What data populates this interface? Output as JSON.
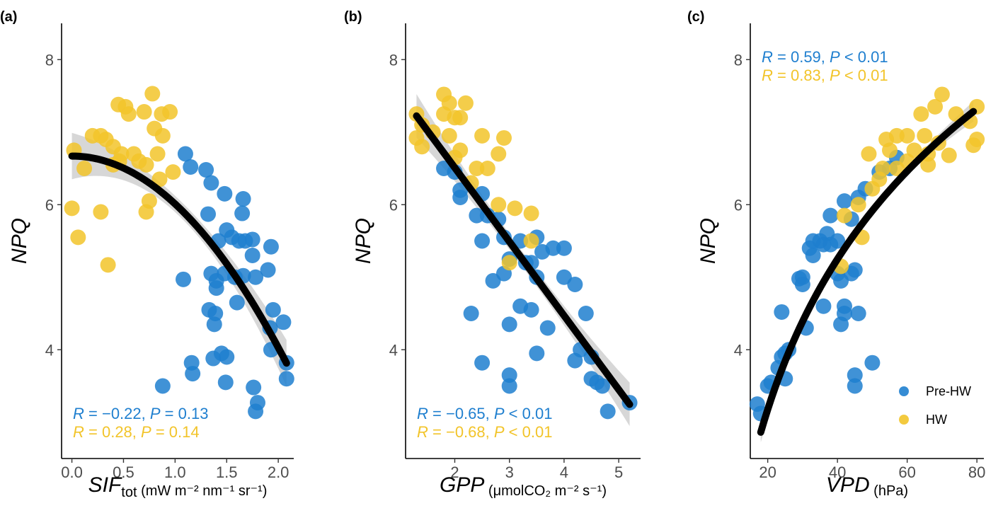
{
  "colors": {
    "pre_hw": "#1f7fcf",
    "hw": "#f2c42a",
    "fit": "#000000",
    "band": "#bdbdbd"
  },
  "legend": {
    "items": [
      {
        "label": "Pre-HW",
        "series": "pre_hw"
      },
      {
        "label": "HW",
        "series": "hw"
      }
    ]
  },
  "chart_data": [
    {
      "type": "scatter",
      "panel_label": "(a)",
      "ylabel": "NPQ",
      "xlabel_main": "SIF",
      "xlabel_sub": "tot",
      "xlabel_unit": "(mW m⁻² nm⁻¹ sr⁻¹)",
      "xlim": [
        -0.1,
        2.15
      ],
      "ylim": [
        2.5,
        8.5
      ],
      "xticks": [
        0.0,
        0.5,
        1.0,
        1.5,
        2.0
      ],
      "xtick_labels": [
        "0.0",
        "0.5",
        "1.0",
        "1.5",
        "2.0"
      ],
      "yticks": [
        4,
        6,
        8
      ],
      "ytick_labels": [
        "4",
        "6",
        "8"
      ],
      "stats": [
        {
          "series": "pre_hw",
          "r": "−0.22",
          "p": "0.13",
          "op": "="
        },
        {
          "series": "hw",
          "r": "0.28",
          "p": "0.14",
          "op": "="
        }
      ],
      "fit": {
        "type": "poly2",
        "coef": [
          6.67,
          0.0,
          -0.66
        ],
        "x": [
          0.0,
          2.08
        ],
        "se": 0.32
      },
      "series": [
        {
          "name": "Pre-HW",
          "key": "pre_hw",
          "points": [
            [
              1.1,
              6.7
            ],
            [
              1.15,
              6.52
            ],
            [
              1.3,
              6.48
            ],
            [
              1.35,
              6.3
            ],
            [
              1.48,
              6.15
            ],
            [
              1.66,
              6.08
            ],
            [
              1.65,
              5.88
            ],
            [
              1.32,
              5.87
            ],
            [
              1.5,
              5.65
            ],
            [
              1.42,
              5.5
            ],
            [
              1.55,
              5.55
            ],
            [
              1.62,
              5.5
            ],
            [
              1.68,
              5.5
            ],
            [
              1.75,
              5.52
            ],
            [
              1.93,
              5.42
            ],
            [
              1.75,
              5.3
            ],
            [
              1.48,
              5.05
            ],
            [
              1.35,
              5.05
            ],
            [
              1.4,
              4.95
            ],
            [
              1.08,
              4.97
            ],
            [
              1.58,
              5.0
            ],
            [
              1.66,
              5.02
            ],
            [
              1.78,
              5.0
            ],
            [
              1.9,
              5.1
            ],
            [
              1.4,
              4.85
            ],
            [
              1.6,
              4.65
            ],
            [
              1.33,
              4.55
            ],
            [
              1.39,
              4.5
            ],
            [
              1.38,
              4.35
            ],
            [
              1.95,
              4.55
            ],
            [
              2.05,
              4.38
            ],
            [
              1.92,
              4.3
            ],
            [
              1.93,
              4.0
            ],
            [
              1.45,
              3.95
            ],
            [
              1.5,
              3.9
            ],
            [
              1.37,
              3.88
            ],
            [
              1.16,
              3.82
            ],
            [
              1.17,
              3.67
            ],
            [
              1.49,
              3.55
            ],
            [
              1.76,
              3.48
            ],
            [
              0.88,
              3.5
            ],
            [
              1.8,
              3.27
            ],
            [
              1.78,
              3.15
            ],
            [
              2.08,
              3.82
            ],
            [
              2.08,
              3.6
            ]
          ]
        },
        {
          "name": "HW",
          "key": "hw",
          "points": [
            [
              0.45,
              7.38
            ],
            [
              0.52,
              7.35
            ],
            [
              0.78,
              7.53
            ],
            [
              0.7,
              7.28
            ],
            [
              0.87,
              7.25
            ],
            [
              0.95,
              7.28
            ],
            [
              0.55,
              7.25
            ],
            [
              0.8,
              7.05
            ],
            [
              0.88,
              6.95
            ],
            [
              0.2,
              6.95
            ],
            [
              0.28,
              6.95
            ],
            [
              0.33,
              6.9
            ],
            [
              0.02,
              6.75
            ],
            [
              0.4,
              6.8
            ],
            [
              0.48,
              6.7
            ],
            [
              0.6,
              6.7
            ],
            [
              0.83,
              6.7
            ],
            [
              0.46,
              6.6
            ],
            [
              0.65,
              6.6
            ],
            [
              0.12,
              6.5
            ],
            [
              0.4,
              6.55
            ],
            [
              0.72,
              6.55
            ],
            [
              0.98,
              6.45
            ],
            [
              0.85,
              6.35
            ],
            [
              0.75,
              6.05
            ],
            [
              0.72,
              5.9
            ],
            [
              0.28,
              5.9
            ],
            [
              0.0,
              5.95
            ],
            [
              0.06,
              5.55
            ],
            [
              0.35,
              5.17
            ]
          ]
        }
      ]
    },
    {
      "type": "scatter",
      "panel_label": "(b)",
      "ylabel": "NPQ",
      "xlabel_main": "GPP",
      "xlabel_sub": "",
      "xlabel_unit": "(μmolCO₂ m⁻² s⁻¹)",
      "xlim": [
        1.1,
        5.4
      ],
      "ylim": [
        2.5,
        8.5
      ],
      "xticks": [
        2,
        3,
        4,
        5
      ],
      "xtick_labels": [
        "2",
        "3",
        "4",
        "5"
      ],
      "yticks": [
        4,
        6,
        8
      ],
      "ytick_labels": [
        "4",
        "6",
        "8"
      ],
      "stats": [
        {
          "series": "pre_hw",
          "r": "−0.65",
          "p": "0.01",
          "op": "<"
        },
        {
          "series": "hw",
          "r": "−0.68",
          "p": "0.01",
          "op": "<"
        }
      ],
      "fit": {
        "type": "poly2",
        "coef": [
          8.55,
          -1.02,
          0.0
        ],
        "x": [
          1.3,
          5.2
        ],
        "se": 0.3
      },
      "series": [
        {
          "name": "Pre-HW",
          "key": "pre_hw",
          "points": [
            [
              1.8,
              6.5
            ],
            [
              2.0,
              6.45
            ],
            [
              2.1,
              6.2
            ],
            [
              2.1,
              6.1
            ],
            [
              2.5,
              6.15
            ],
            [
              2.4,
              5.85
            ],
            [
              2.6,
              5.85
            ],
            [
              2.9,
              5.55
            ],
            [
              3.2,
              5.5
            ],
            [
              3.5,
              5.55
            ],
            [
              3.6,
              5.35
            ],
            [
              3.8,
              5.4
            ],
            [
              2.8,
              5.8
            ],
            [
              3.0,
              5.25
            ],
            [
              3.3,
              5.2
            ],
            [
              3.4,
              5.2
            ],
            [
              4.0,
              5.4
            ],
            [
              2.5,
              5.5
            ],
            [
              3.5,
              5.0
            ],
            [
              4.0,
              5.0
            ],
            [
              4.2,
              4.9
            ],
            [
              2.9,
              5.05
            ],
            [
              2.7,
              4.95
            ],
            [
              3.2,
              4.6
            ],
            [
              3.4,
              4.55
            ],
            [
              3.7,
              4.3
            ],
            [
              4.4,
              4.5
            ],
            [
              4.3,
              4.0
            ],
            [
              4.5,
              3.9
            ],
            [
              2.3,
              4.5
            ],
            [
              3.0,
              4.35
            ],
            [
              3.5,
              3.95
            ],
            [
              4.2,
              3.85
            ],
            [
              4.6,
              3.55
            ],
            [
              4.5,
              3.6
            ],
            [
              4.7,
              3.5
            ],
            [
              4.8,
              3.15
            ],
            [
              5.2,
              3.27
            ],
            [
              2.5,
              3.82
            ],
            [
              3.0,
              3.65
            ],
            [
              3.0,
              3.5
            ]
          ]
        },
        {
          "name": "HW",
          "key": "hw",
          "points": [
            [
              1.8,
              7.52
            ],
            [
              1.9,
              7.4
            ],
            [
              2.2,
              7.4
            ],
            [
              1.8,
              7.25
            ],
            [
              2.0,
              7.2
            ],
            [
              2.1,
              7.2
            ],
            [
              1.3,
              7.25
            ],
            [
              1.4,
              7.1
            ],
            [
              1.6,
              7.0
            ],
            [
              1.4,
              6.8
            ],
            [
              1.3,
              6.92
            ],
            [
              1.9,
              6.95
            ],
            [
              2.5,
              6.95
            ],
            [
              2.9,
              6.92
            ],
            [
              2.1,
              6.75
            ],
            [
              2.4,
              6.5
            ],
            [
              2.6,
              6.5
            ],
            [
              2.8,
              6.7
            ],
            [
              2.0,
              6.65
            ],
            [
              2.3,
              6.3
            ],
            [
              2.8,
              6.0
            ],
            [
              3.1,
              5.95
            ],
            [
              3.4,
              5.88
            ],
            [
              3.4,
              5.5
            ],
            [
              3.0,
              5.2
            ]
          ]
        }
      ]
    },
    {
      "type": "scatter",
      "panel_label": "(c)",
      "ylabel": "NPQ",
      "xlabel_main": "VPD",
      "xlabel_sub": "",
      "xlabel_unit": "(hPa)",
      "xlim": [
        15,
        82
      ],
      "ylim": [
        2.5,
        8.5
      ],
      "xticks": [
        20,
        40,
        60,
        80
      ],
      "xtick_labels": [
        "20",
        "40",
        "60",
        "80"
      ],
      "yticks": [
        4,
        6,
        8
      ],
      "ytick_labels": [
        "4",
        "6",
        "8"
      ],
      "stats": [
        {
          "series": "pre_hw",
          "r": "0.59",
          "p": "0.01",
          "op": "<"
        },
        {
          "series": "hw",
          "r": "0.83",
          "p": "0.01",
          "op": "<"
        }
      ],
      "fit": {
        "type": "log",
        "coef": [
          -5.78,
          2.99
        ],
        "x": [
          18,
          79
        ],
        "se": 0.14
      },
      "series": [
        {
          "name": "Pre-HW",
          "key": "pre_hw",
          "points": [
            [
              17,
              3.25
            ],
            [
              18,
              3.12
            ],
            [
              20,
              3.5
            ],
            [
              21,
              3.55
            ],
            [
              23,
              3.75
            ],
            [
              24,
              3.9
            ],
            [
              25,
              3.95
            ],
            [
              25,
              3.6
            ],
            [
              26,
              4.0
            ],
            [
              24,
              4.52
            ],
            [
              29,
              4.98
            ],
            [
              30,
              5.0
            ],
            [
              31,
              4.3
            ],
            [
              32,
              5.4
            ],
            [
              33,
              5.5
            ],
            [
              33,
              5.3
            ],
            [
              35,
              5.5
            ],
            [
              36,
              5.45
            ],
            [
              37,
              5.6
            ],
            [
              38,
              5.45
            ],
            [
              40,
              5.5
            ],
            [
              38,
              5.85
            ],
            [
              40,
              5.05
            ],
            [
              41,
              4.95
            ],
            [
              41,
              4.35
            ],
            [
              42,
              4.6
            ],
            [
              42,
              4.5
            ],
            [
              44,
              5.05
            ],
            [
              45,
              5.1
            ],
            [
              46,
              4.5
            ],
            [
              45,
              3.65
            ],
            [
              45,
              3.5
            ],
            [
              50,
              3.82
            ],
            [
              42,
              6.05
            ],
            [
              46,
              6.1
            ],
            [
              48,
              6.22
            ],
            [
              52,
              6.45
            ],
            [
              55,
              6.5
            ],
            [
              57,
              6.65
            ],
            [
              44,
              5.8
            ],
            [
              36,
              4.6
            ],
            [
              30,
              4.9
            ]
          ]
        },
        {
          "name": "HW",
          "key": "hw",
          "points": [
            [
              70,
              7.52
            ],
            [
              80,
              7.35
            ],
            [
              68,
              7.35
            ],
            [
              74,
              7.25
            ],
            [
              64,
              7.25
            ],
            [
              78,
              7.15
            ],
            [
              80,
              6.9
            ],
            [
              60,
              6.95
            ],
            [
              65,
              6.95
            ],
            [
              57,
              6.95
            ],
            [
              54,
              6.9
            ],
            [
              69,
              6.85
            ],
            [
              62,
              6.75
            ],
            [
              55,
              6.75
            ],
            [
              66,
              6.7
            ],
            [
              72,
              6.68
            ],
            [
              49,
              6.7
            ],
            [
              57,
              6.5
            ],
            [
              53,
              6.5
            ],
            [
              52,
              6.35
            ],
            [
              60,
              6.6
            ],
            [
              66,
              6.55
            ],
            [
              50,
              6.22
            ],
            [
              46,
              6.0
            ],
            [
              42,
              5.85
            ],
            [
              47,
              5.55
            ],
            [
              41,
              5.15
            ],
            [
              79,
              6.82
            ]
          ]
        }
      ]
    }
  ]
}
